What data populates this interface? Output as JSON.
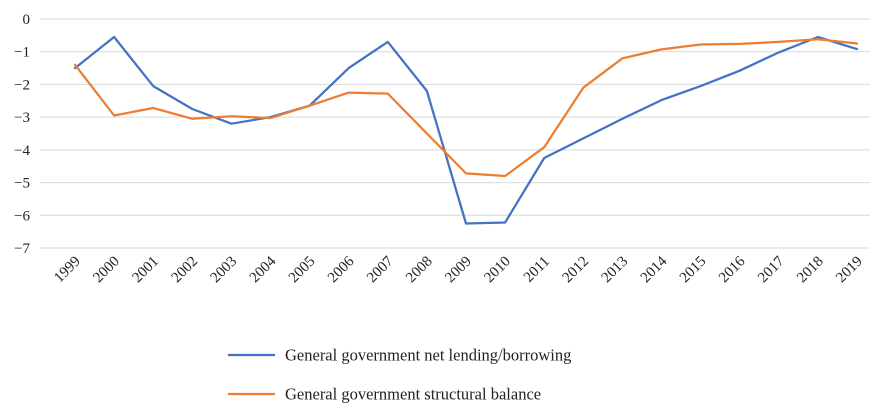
{
  "chart_data": {
    "type": "line",
    "title": "",
    "xlabel": "",
    "ylabel": "",
    "x": [
      "1999",
      "2000",
      "2001",
      "2002",
      "2003",
      "2004",
      "2005",
      "2006",
      "2007",
      "2008",
      "2009",
      "2010",
      "2011",
      "2012",
      "2013",
      "2014",
      "2015",
      "2016",
      "2017",
      "2018",
      "2019"
    ],
    "ylim": [
      -7,
      0
    ],
    "yticks": [
      "0",
      "−1",
      "−2",
      "−3",
      "−4",
      "−5",
      "−6",
      "−7"
    ],
    "grid": true,
    "legend_position": "bottom",
    "series": [
      {
        "name": "General government net lending/borrowing",
        "color": "#4472C4",
        "values": [
          -1.5,
          -0.55,
          -2.05,
          -2.75,
          -3.2,
          -3.0,
          -2.65,
          -1.5,
          -0.7,
          -2.2,
          -6.25,
          -6.22,
          -4.25,
          -3.65,
          -3.05,
          -2.48,
          -2.05,
          -1.58,
          -1.02,
          -0.55,
          -0.92
        ]
      },
      {
        "name": "General government structural balance",
        "color": "#ED7D31",
        "values": [
          -1.4,
          -2.95,
          -2.72,
          -3.05,
          -2.97,
          -3.03,
          -2.65,
          -2.25,
          -2.28,
          -3.5,
          -4.72,
          -4.8,
          -3.92,
          -2.1,
          -1.2,
          -0.93,
          -0.78,
          -0.76,
          -0.7,
          -0.62,
          -0.75
        ]
      }
    ]
  }
}
